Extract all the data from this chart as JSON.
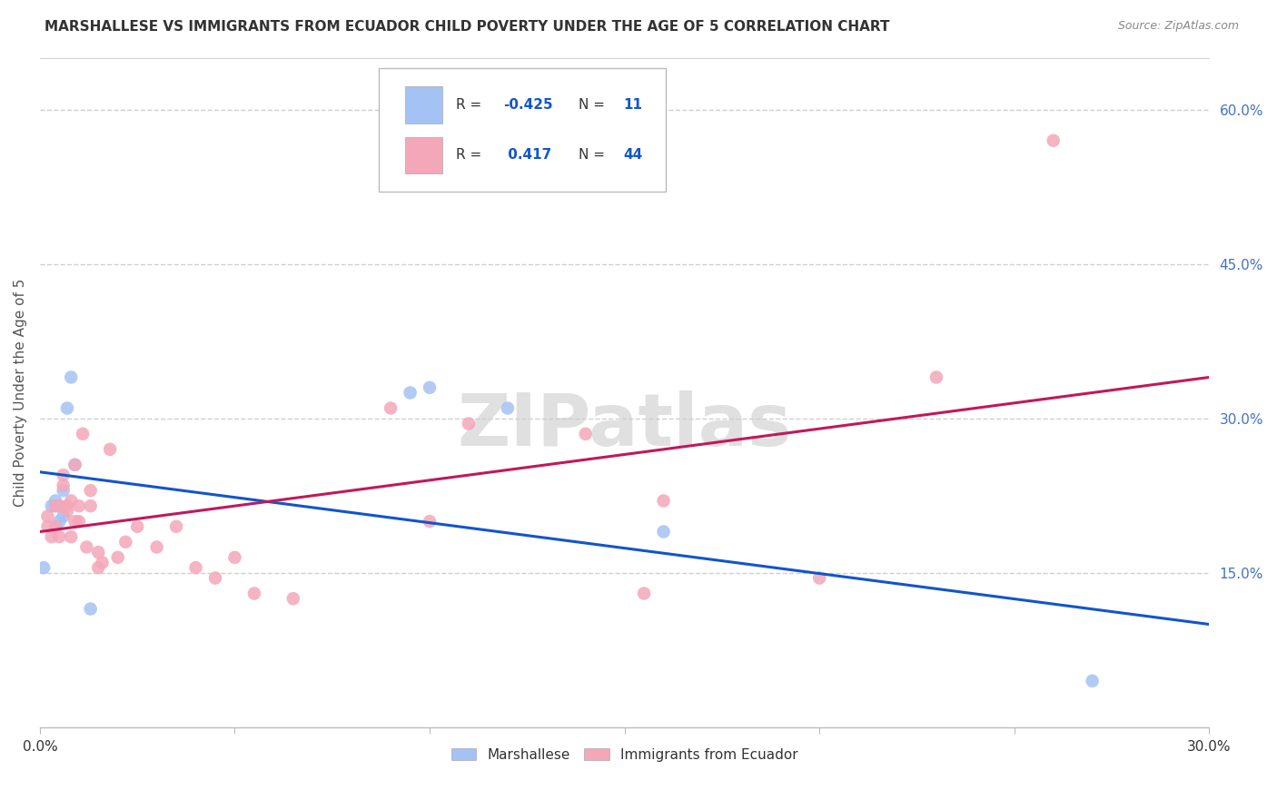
{
  "title": "MARSHALLESE VS IMMIGRANTS FROM ECUADOR CHILD POVERTY UNDER THE AGE OF 5 CORRELATION CHART",
  "source": "Source: ZipAtlas.com",
  "ylabel": "Child Poverty Under the Age of 5",
  "xlim": [
    0.0,
    0.3
  ],
  "ylim": [
    0.0,
    0.65
  ],
  "x_ticks": [
    0.0,
    0.05,
    0.1,
    0.15,
    0.2,
    0.25,
    0.3
  ],
  "x_tick_labels": [
    "0.0%",
    "",
    "",
    "",
    "",
    "",
    "30.0%"
  ],
  "y_ticks_right": [
    0.15,
    0.3,
    0.45,
    0.6
  ],
  "y_tick_labels_right": [
    "15.0%",
    "30.0%",
    "45.0%",
    "60.0%"
  ],
  "background_color": "#ffffff",
  "grid_color": "#d0d0d0",
  "watermark": "ZIPatlas",
  "blue_color": "#a4c2f4",
  "pink_color": "#f4a7b9",
  "blue_line_color": "#1155cc",
  "pink_line_color": "#c2185b",
  "legend_text_color": "#1155cc",
  "marshallese_x": [
    0.001,
    0.003,
    0.004,
    0.004,
    0.005,
    0.005,
    0.006,
    0.006,
    0.007,
    0.008,
    0.009,
    0.013,
    0.095,
    0.1,
    0.12,
    0.16,
    0.27
  ],
  "marshallese_y": [
    0.155,
    0.215,
    0.22,
    0.215,
    0.2,
    0.215,
    0.205,
    0.23,
    0.31,
    0.34,
    0.255,
    0.115,
    0.325,
    0.33,
    0.31,
    0.19,
    0.045
  ],
  "ecuador_x": [
    0.002,
    0.002,
    0.003,
    0.004,
    0.004,
    0.005,
    0.005,
    0.006,
    0.006,
    0.007,
    0.007,
    0.008,
    0.008,
    0.009,
    0.009,
    0.01,
    0.01,
    0.011,
    0.012,
    0.013,
    0.013,
    0.015,
    0.015,
    0.016,
    0.018,
    0.02,
    0.022,
    0.025,
    0.03,
    0.035,
    0.04,
    0.045,
    0.05,
    0.055,
    0.065,
    0.09,
    0.1,
    0.11,
    0.14,
    0.16,
    0.23,
    0.26,
    0.155,
    0.2
  ],
  "ecuador_y": [
    0.205,
    0.195,
    0.185,
    0.195,
    0.215,
    0.215,
    0.185,
    0.235,
    0.245,
    0.215,
    0.21,
    0.185,
    0.22,
    0.2,
    0.255,
    0.215,
    0.2,
    0.285,
    0.175,
    0.215,
    0.23,
    0.17,
    0.155,
    0.16,
    0.27,
    0.165,
    0.18,
    0.195,
    0.175,
    0.195,
    0.155,
    0.145,
    0.165,
    0.13,
    0.125,
    0.31,
    0.2,
    0.295,
    0.285,
    0.22,
    0.34,
    0.57,
    0.13,
    0.145
  ],
  "blue_line_x": [
    0.0,
    0.3
  ],
  "blue_line_y": [
    0.248,
    0.1
  ],
  "pink_line_x": [
    0.0,
    0.3
  ],
  "pink_line_y": [
    0.19,
    0.34
  ]
}
